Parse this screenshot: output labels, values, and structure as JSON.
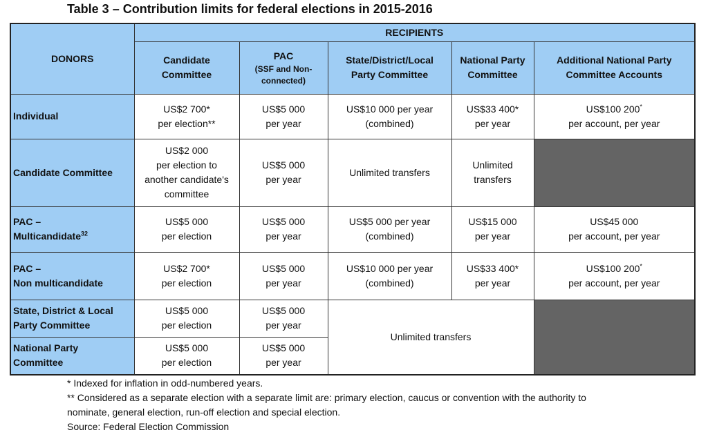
{
  "title": "Table 3 – Contribution limits for federal elections in 2015-2016",
  "table": {
    "donors_header": "DONORS",
    "recipients_header": "RECIPIENTS",
    "columns": [
      [
        "Candidate",
        "Committee"
      ],
      {
        "title": "PAC",
        "subtitle": [
          "(SSF and Non-",
          "connected)"
        ]
      },
      [
        "State/District/Local",
        "Party Committee"
      ],
      [
        "National Party",
        "Committee"
      ],
      [
        "Additional National Party",
        "Committee Accounts"
      ]
    ],
    "rows": [
      {
        "donor": [
          "Individual"
        ],
        "cells": [
          [
            "US$2 700*",
            "per election**"
          ],
          [
            "US$5 000",
            "per year"
          ],
          [
            "US$10 000 per year",
            "(combined)"
          ],
          [
            "US$33 400*",
            "per year"
          ],
          [
            {
              "text": "US$100 200",
              "sup": "*"
            },
            "per account, per year"
          ]
        ]
      },
      {
        "donor": [
          "Candidate Committee"
        ],
        "cells": [
          [
            "US$2 000",
            "per election to",
            "another candidate's",
            "committee"
          ],
          [
            "US$5 000",
            "per year"
          ],
          [
            "Unlimited transfers"
          ],
          [
            "Unlimited",
            "transfers"
          ]
        ]
      },
      {
        "donor": [
          "PAC –",
          {
            "text": "Multicandidate",
            "sup": "32"
          }
        ],
        "cells": [
          [
            "US$5 000",
            "per election"
          ],
          [
            "US$5 000",
            "per year"
          ],
          [
            "US$5 000 per year",
            "(combined)"
          ],
          [
            "US$15 000",
            "per year"
          ],
          [
            "US$45 000",
            "per account, per year"
          ]
        ]
      },
      {
        "donor": [
          "PAC –",
          "Non multicandidate"
        ],
        "cells": [
          [
            "US$2 700*",
            "per election"
          ],
          [
            "US$5 000",
            "per year"
          ],
          [
            "US$10 000 per year",
            "(combined)"
          ],
          [
            "US$33 400*",
            "per year"
          ],
          [
            {
              "text": "US$100 200",
              "sup": "*"
            },
            "per account, per year"
          ]
        ]
      },
      {
        "donor": [
          "State, District & Local",
          "Party Committee"
        ],
        "cells": [
          [
            "US$5 000",
            "per election"
          ],
          [
            "US$5 000",
            "per year"
          ]
        ]
      },
      {
        "donor": [
          "National Party",
          "Committee"
        ],
        "cells": [
          [
            "US$5 000",
            "per election"
          ],
          [
            "US$5 000",
            "per year"
          ]
        ]
      }
    ],
    "shared_cell": "Unlimited transfers"
  },
  "footnotes": [
    "* Indexed for inflation in odd-numbered years.",
    "** Considered as a separate election with a separate limit are: primary election, caucus or convention with the authority to nominate, general election, run-off election and special election.",
    "Source: Federal Election Commission"
  ]
}
